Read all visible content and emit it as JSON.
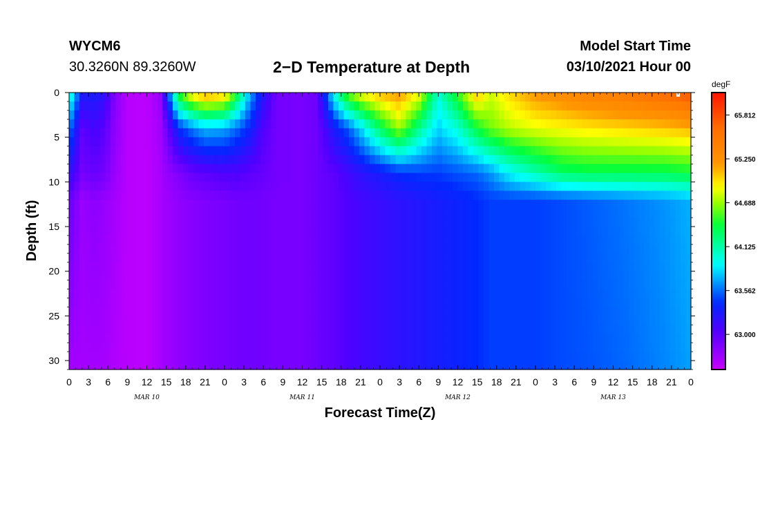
{
  "header": {
    "station": "WYCM6",
    "coords": "30.3260N 89.3260W",
    "title": "2−D Temperature at Depth",
    "model_start_label": "Model Start Time",
    "model_start_value": "03/10/2021 Hour 00"
  },
  "chart_data": {
    "type": "heatmap",
    "title": "2−D Temperature at Depth",
    "xlabel": "Forecast Time(Z)",
    "ylabel": "Depth (ft)",
    "x_range_hours": [
      0,
      96
    ],
    "y_range_ft": [
      0,
      31
    ],
    "x_tick_hours": [
      0,
      3,
      6,
      9,
      12,
      15,
      18,
      21,
      24,
      27,
      30,
      33,
      36,
      39,
      42,
      45,
      48,
      51,
      54,
      57,
      60,
      63,
      66,
      69,
      72,
      75,
      78,
      81,
      84,
      87,
      90,
      93,
      96
    ],
    "x_tick_labels": [
      "0",
      "3",
      "6",
      "9",
      "12",
      "15",
      "18",
      "21",
      "0",
      "3",
      "6",
      "9",
      "12",
      "15",
      "18",
      "21",
      "0",
      "3",
      "6",
      "9",
      "12",
      "15",
      "18",
      "21",
      "0",
      "3",
      "6",
      "9",
      "12",
      "15",
      "18",
      "21",
      "0"
    ],
    "date_labels": [
      {
        "text": "MAR 10",
        "hour": 12
      },
      {
        "text": "MAR 11",
        "hour": 36
      },
      {
        "text": "MAR 12",
        "hour": 60
      },
      {
        "text": "MAR 13",
        "hour": 84
      }
    ],
    "y_ticks": [
      0,
      5,
      10,
      15,
      20,
      25,
      30
    ],
    "y_tick_labels": [
      "0",
      "5",
      "10",
      "15",
      "20",
      "25",
      "30"
    ],
    "colorbar": {
      "units": "degF",
      "vmin": 62.55,
      "vmax": 66.1,
      "tick_values": [
        63.0,
        63.562,
        64.125,
        64.688,
        65.25,
        65.812
      ],
      "tick_labels": [
        "63.000",
        "63.562",
        "64.125",
        "64.688",
        "65.250",
        "65.812"
      ]
    },
    "columns": [
      {
        "hour": 0,
        "t": [
          64.1,
          63.6,
          63.2,
          62.95,
          62.7
        ]
      },
      {
        "hour": 2,
        "t": [
          63.3,
          63.0,
          62.9,
          62.75,
          62.7
        ]
      },
      {
        "hour": 4,
        "t": [
          63.3,
          63.1,
          62.95,
          62.8,
          62.7
        ]
      },
      {
        "hour": 5.5,
        "t": [
          63.2,
          63.0,
          62.9,
          62.75,
          62.7
        ]
      },
      {
        "hour": 7,
        "t": [
          62.85,
          62.8,
          62.75,
          62.7,
          62.65
        ]
      },
      {
        "hour": 9,
        "t": [
          62.62,
          62.62,
          62.62,
          62.62,
          62.62
        ]
      },
      {
        "hour": 12,
        "t": [
          62.6,
          62.6,
          62.6,
          62.6,
          62.6
        ]
      },
      {
        "hour": 14,
        "t": [
          62.75,
          62.7,
          62.68,
          62.68,
          62.68
        ]
      },
      {
        "hour": 15,
        "t": [
          63.3,
          62.9,
          62.75,
          62.72,
          62.72
        ]
      },
      {
        "hour": 17,
        "t": [
          64.5,
          63.4,
          62.85,
          62.78,
          62.78
        ]
      },
      {
        "hour": 19,
        "t": [
          65.0,
          63.6,
          62.95,
          62.82,
          62.82
        ]
      },
      {
        "hour": 21,
        "t": [
          65.2,
          63.75,
          63.0,
          62.85,
          62.85
        ]
      },
      {
        "hour": 24,
        "t": [
          65.1,
          63.7,
          63.05,
          62.88,
          62.88
        ]
      },
      {
        "hour": 26,
        "t": [
          64.4,
          63.55,
          63.05,
          62.9,
          62.9
        ]
      },
      {
        "hour": 28,
        "t": [
          63.7,
          63.35,
          63.0,
          62.92,
          62.92
        ]
      },
      {
        "hour": 30,
        "t": [
          63.25,
          63.05,
          62.95,
          62.9,
          62.9
        ]
      },
      {
        "hour": 32,
        "t": [
          62.9,
          62.9,
          62.9,
          62.88,
          62.88
        ]
      },
      {
        "hour": 36,
        "t": [
          62.88,
          62.88,
          62.88,
          62.88,
          62.88
        ]
      },
      {
        "hour": 38,
        "t": [
          62.92,
          62.92,
          62.92,
          62.92,
          62.92
        ]
      },
      {
        "hour": 39,
        "t": [
          63.2,
          63.0,
          62.95,
          62.95,
          62.95
        ]
      },
      {
        "hour": 41,
        "t": [
          64.0,
          63.3,
          63.0,
          62.98,
          62.98
        ]
      },
      {
        "hour": 43,
        "t": [
          64.6,
          63.5,
          63.1,
          63.05,
          63.05
        ]
      },
      {
        "hour": 45,
        "t": [
          64.9,
          63.8,
          63.2,
          63.1,
          63.1
        ]
      },
      {
        "hour": 48,
        "t": [
          65.1,
          64.3,
          63.3,
          63.15,
          63.15
        ]
      },
      {
        "hour": 51,
        "t": [
          65.2,
          64.7,
          63.4,
          63.2,
          63.2
        ]
      },
      {
        "hour": 54,
        "t": [
          64.9,
          64.2,
          63.45,
          63.25,
          63.25
        ]
      },
      {
        "hour": 57,
        "t": [
          64.0,
          63.8,
          63.45,
          63.3,
          63.3
        ]
      },
      {
        "hour": 60,
        "t": [
          64.5,
          64.0,
          63.5,
          63.35,
          63.35
        ]
      },
      {
        "hour": 63,
        "t": [
          65.1,
          64.4,
          63.55,
          63.4,
          63.4
        ]
      },
      {
        "hour": 65,
        "t": [
          64.8,
          64.6,
          63.65,
          63.45,
          63.45
        ]
      },
      {
        "hour": 68,
        "t": [
          65.0,
          64.75,
          63.9,
          63.45,
          63.45
        ]
      },
      {
        "hour": 72,
        "t": [
          65.2,
          64.85,
          64.1,
          63.45,
          63.45
        ]
      },
      {
        "hour": 76,
        "t": [
          65.3,
          64.9,
          64.3,
          63.48,
          63.48
        ]
      },
      {
        "hour": 80,
        "t": [
          65.4,
          64.95,
          64.35,
          63.52,
          63.5
        ]
      },
      {
        "hour": 86,
        "t": [
          65.5,
          65.0,
          64.35,
          63.58,
          63.55
        ]
      },
      {
        "hour": 92,
        "t": [
          65.65,
          65.05,
          64.35,
          63.65,
          63.62
        ]
      },
      {
        "hour": 96,
        "t": [
          65.8,
          65.1,
          64.4,
          63.72,
          63.68
        ]
      }
    ],
    "column_depths_ft": [
      0,
      4,
      9,
      12,
      31
    ]
  }
}
